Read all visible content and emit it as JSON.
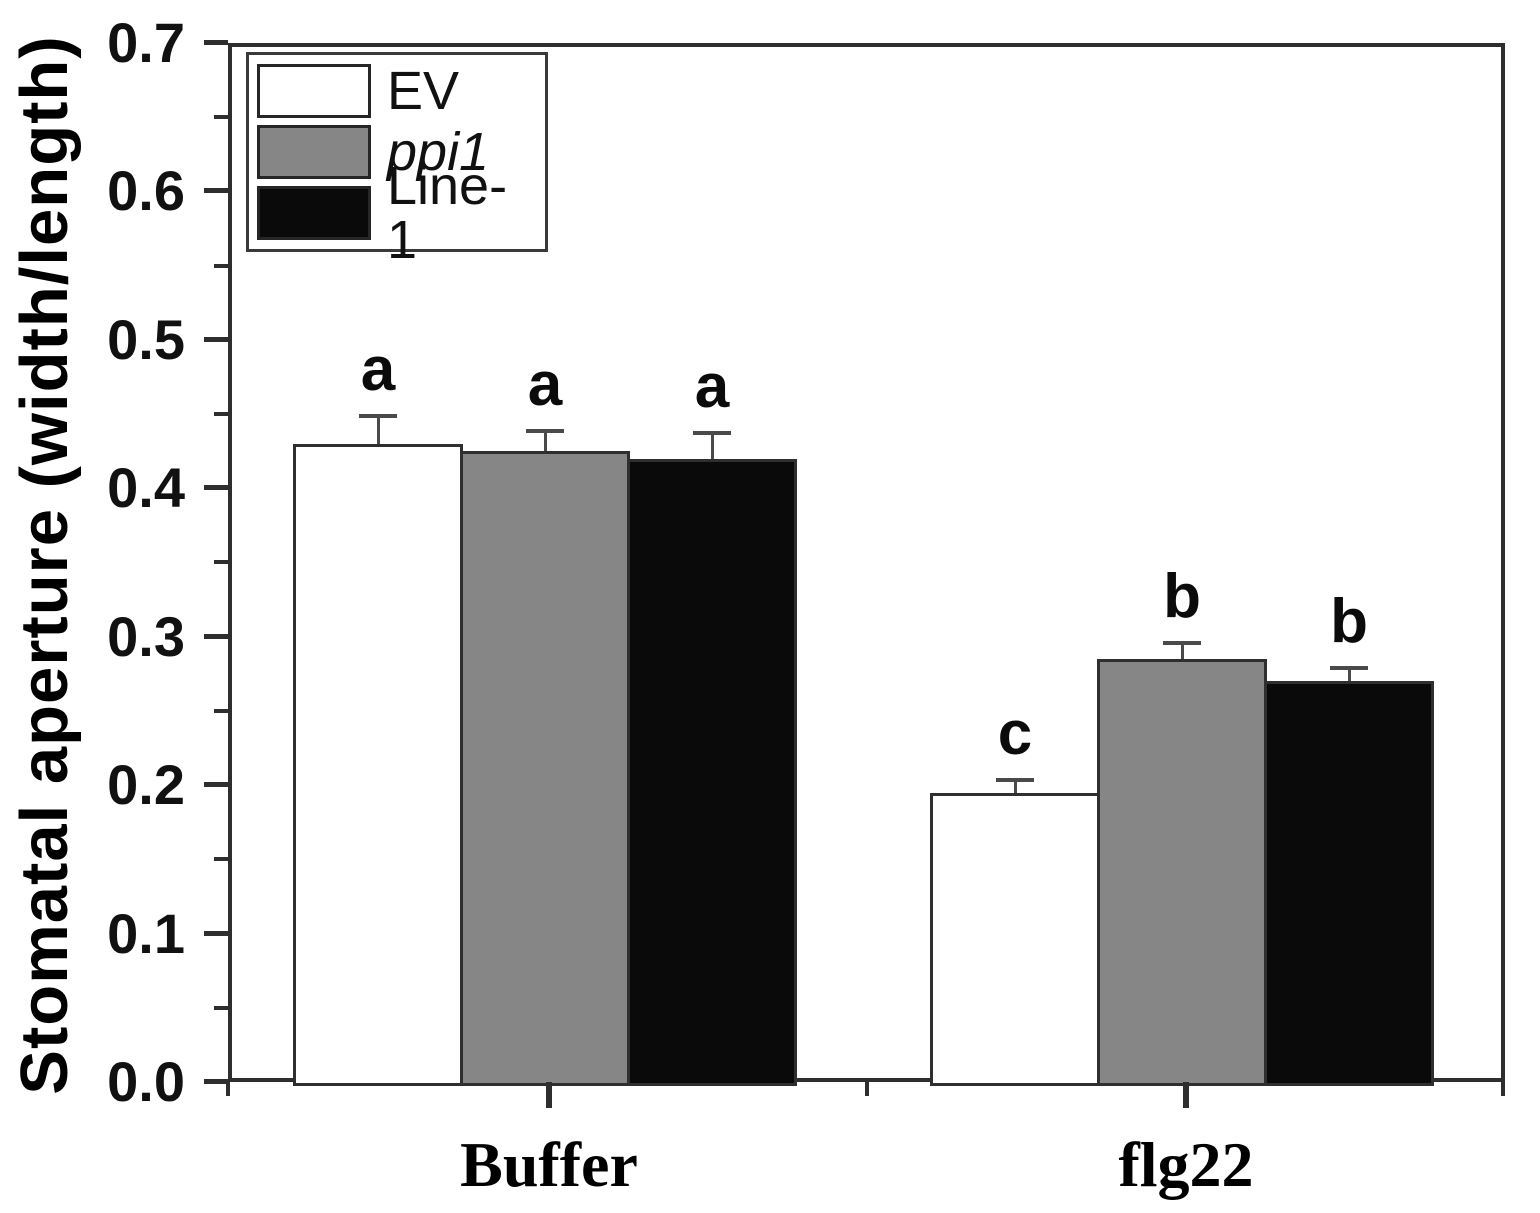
{
  "figure": {
    "background": "#ffffff",
    "frame_color": "#2e2e2e",
    "error_bar_color": "#4a4a4a"
  },
  "y_axis": {
    "title": "Stomatal aperture (width/length)",
    "min": 0.0,
    "max": 0.7,
    "major_step": 0.1,
    "minor_step": 0.05,
    "tick_labels": [
      "0.0",
      "0.1",
      "0.2",
      "0.3",
      "0.4",
      "0.5",
      "0.6",
      "0.7"
    ]
  },
  "x_axis": {
    "categories": [
      "Buffer",
      "flg22"
    ]
  },
  "legend": {
    "entries": [
      {
        "label": "EV",
        "color": "#ffffff",
        "italic": false
      },
      {
        "label": "ppi1",
        "color": "#868686",
        "italic": true
      },
      {
        "label": "Line-1",
        "color": "#0a0a0a",
        "italic": false
      }
    ]
  },
  "chart_data": {
    "type": "bar",
    "title": "",
    "xlabel": "",
    "ylabel": "Stomatal aperture (width/length)",
    "ylim": [
      0,
      0.7
    ],
    "grid": false,
    "legend_position": "top-left-inside",
    "categories": [
      "Buffer",
      "flg22"
    ],
    "series": [
      {
        "name": "EV",
        "fill": "#ffffff",
        "values": [
          0.43,
          0.195
        ],
        "errors": [
          0.018,
          0.008
        ],
        "letters": [
          "a",
          "c"
        ]
      },
      {
        "name": "ppi1",
        "fill": "#868686",
        "values": [
          0.425,
          0.285
        ],
        "errors": [
          0.013,
          0.01
        ],
        "letters": [
          "a",
          "b"
        ]
      },
      {
        "name": "Line-1",
        "fill": "#0a0a0a",
        "values": [
          0.42,
          0.27
        ],
        "errors": [
          0.017,
          0.008
        ],
        "letters": [
          "a",
          "b"
        ]
      }
    ]
  }
}
